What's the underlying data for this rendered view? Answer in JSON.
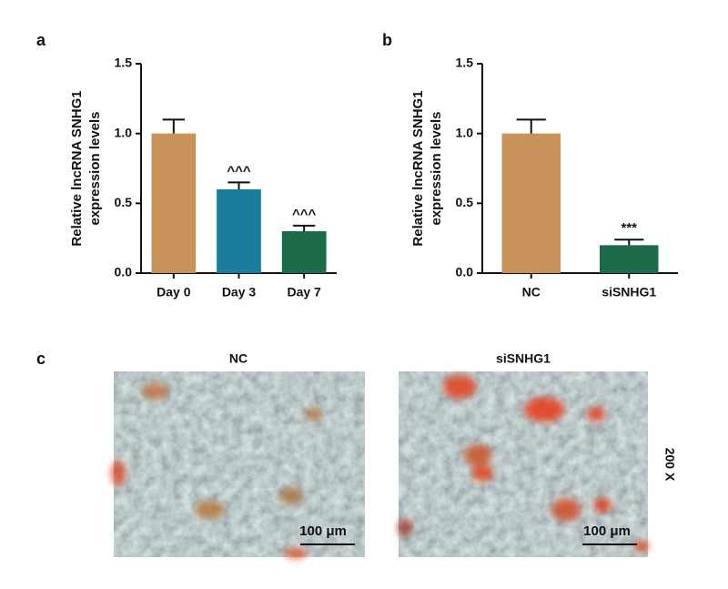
{
  "chart_data": [
    {
      "type": "bar",
      "panel_label": "a",
      "ylabel": [
        "Relative lncRNA SNHG1",
        "expression levels"
      ],
      "categories": [
        "Day 0",
        "Day 3",
        "Day 7"
      ],
      "values": [
        1.0,
        0.6,
        0.3
      ],
      "errors": [
        0.1,
        0.05,
        0.04
      ],
      "annotations": [
        null,
        "^^^",
        "^^^"
      ],
      "colors": [
        "#c8935a",
        "#1a7d9c",
        "#1c6b49"
      ],
      "ylim": [
        0,
        1.5
      ],
      "yticks": [
        {
          "value": 0,
          "label": "0.0"
        },
        0.5,
        {
          "value": 1,
          "label": "1.0"
        },
        1.5
      ]
    },
    {
      "type": "bar",
      "panel_label": "b",
      "ylabel": [
        "Relative lncRNA SNHG1",
        "expression levels"
      ],
      "categories": [
        "NC",
        "siSNHG1"
      ],
      "values": [
        1.0,
        0.2
      ],
      "errors": [
        0.1,
        0.04
      ],
      "annotations": [
        null,
        "***"
      ],
      "colors": [
        "#c8935a",
        "#1c6b49"
      ],
      "ylim": [
        0,
        1.5
      ],
      "yticks": [
        {
          "value": 0,
          "label": "0.0"
        },
        0.5,
        {
          "value": 1,
          "label": "1.0"
        },
        1.5
      ]
    }
  ],
  "images": {
    "panel_label": "c",
    "titles": [
      "NC",
      "siSNHG1"
    ],
    "scale_bar": "100 μm",
    "magnification": "200 X"
  }
}
